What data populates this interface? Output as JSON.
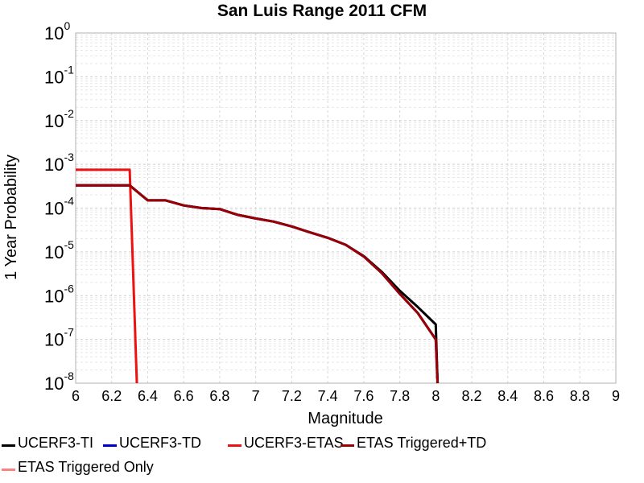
{
  "chart_data": {
    "type": "line",
    "title": "San Luis Range 2011 CFM",
    "xlabel": "Magnitude",
    "ylabel": "1 Year Probability",
    "xlim": [
      6,
      9
    ],
    "ylim": [
      1e-08,
      1
    ],
    "yscale": "log",
    "grid": true,
    "legend_position": "bottom",
    "x_ticks": [
      "6",
      "6.2",
      "6.4",
      "6.6",
      "6.8",
      "7",
      "7.2",
      "7.4",
      "7.6",
      "7.8",
      "8",
      "8.2",
      "8.4",
      "8.6",
      "8.8",
      "9"
    ],
    "y_ticks": [
      {
        "base": "10",
        "exp": "0",
        "value": 1
      },
      {
        "base": "10",
        "exp": "-1",
        "value": 0.1
      },
      {
        "base": "10",
        "exp": "-2",
        "value": 0.01
      },
      {
        "base": "10",
        "exp": "-3",
        "value": 0.001
      },
      {
        "base": "10",
        "exp": "-4",
        "value": 0.0001
      },
      {
        "base": "10",
        "exp": "-5",
        "value": 1e-05
      },
      {
        "base": "10",
        "exp": "-6",
        "value": 1e-06
      },
      {
        "base": "10",
        "exp": "-7",
        "value": 1e-07
      },
      {
        "base": "10",
        "exp": "-8",
        "value": 1e-08
      }
    ],
    "series": [
      {
        "name": "UCERF3-TI",
        "color": "#000000",
        "points": [
          [
            6.0,
            0.00033
          ],
          [
            6.3,
            0.00033
          ],
          [
            6.4,
            0.00015
          ],
          [
            6.5,
            0.00015
          ],
          [
            6.6,
            0.000115
          ],
          [
            6.7,
            0.0001
          ],
          [
            6.8,
            9.5e-05
          ],
          [
            6.9,
            7e-05
          ],
          [
            7.0,
            5.8e-05
          ],
          [
            7.1,
            4.9e-05
          ],
          [
            7.2,
            3.8e-05
          ],
          [
            7.3,
            2.8e-05
          ],
          [
            7.4,
            2.1e-05
          ],
          [
            7.5,
            1.45e-05
          ],
          [
            7.6,
            8e-06
          ],
          [
            7.7,
            3.5e-06
          ],
          [
            7.8,
            1.3e-06
          ],
          [
            7.9,
            5.5e-07
          ],
          [
            8.0,
            2.2e-07
          ],
          [
            8.01,
            1e-08
          ]
        ]
      },
      {
        "name": "UCERF3-TD",
        "color": "#0000cc",
        "points": [
          [
            6.0,
            0.00033
          ],
          [
            6.3,
            0.00033
          ],
          [
            6.4,
            0.00015
          ],
          [
            6.5,
            0.00015
          ],
          [
            6.6,
            0.000115
          ],
          [
            6.7,
            0.0001
          ],
          [
            6.8,
            9.5e-05
          ],
          [
            6.9,
            7e-05
          ],
          [
            7.0,
            5.8e-05
          ],
          [
            7.1,
            4.9e-05
          ],
          [
            7.2,
            3.8e-05
          ],
          [
            7.3,
            2.8e-05
          ],
          [
            7.4,
            2.1e-05
          ],
          [
            7.5,
            1.45e-05
          ],
          [
            7.6,
            7.8e-06
          ],
          [
            7.7,
            3.3e-06
          ],
          [
            7.8,
            1.1e-06
          ],
          [
            7.9,
            4e-07
          ],
          [
            8.0,
            1e-07
          ],
          [
            8.01,
            1e-08
          ]
        ]
      },
      {
        "name": "UCERF3-ETAS",
        "color": "#ee1111",
        "points": [
          [
            6.0,
            0.00075
          ],
          [
            6.3,
            0.00075
          ],
          [
            6.34,
            1e-08
          ]
        ]
      },
      {
        "name": "ETAS Triggered+TD",
        "color": "#990000",
        "points": [
          [
            6.0,
            0.00033
          ],
          [
            6.3,
            0.00033
          ],
          [
            6.4,
            0.00015
          ],
          [
            6.5,
            0.00015
          ],
          [
            6.6,
            0.000115
          ],
          [
            6.7,
            0.0001
          ],
          [
            6.8,
            9.5e-05
          ],
          [
            6.9,
            7e-05
          ],
          [
            7.0,
            5.8e-05
          ],
          [
            7.1,
            4.9e-05
          ],
          [
            7.2,
            3.8e-05
          ],
          [
            7.3,
            2.8e-05
          ],
          [
            7.4,
            2.1e-05
          ],
          [
            7.5,
            1.45e-05
          ],
          [
            7.6,
            7.8e-06
          ],
          [
            7.7,
            3.3e-06
          ],
          [
            7.8,
            1.1e-06
          ],
          [
            7.9,
            4e-07
          ],
          [
            8.0,
            1e-07
          ],
          [
            8.01,
            1e-08
          ]
        ]
      },
      {
        "name": "ETAS Triggered Only",
        "color": "#ff8080",
        "points": []
      }
    ]
  }
}
